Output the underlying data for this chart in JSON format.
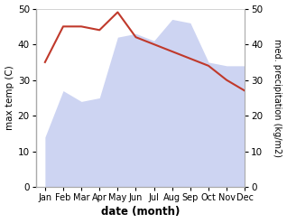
{
  "months": [
    "Jan",
    "Feb",
    "Mar",
    "Apr",
    "May",
    "Jun",
    "Jul",
    "Aug",
    "Sep",
    "Oct",
    "Nov",
    "Dec"
  ],
  "max_temp": [
    35,
    45,
    45,
    44,
    49,
    42,
    40,
    38,
    36,
    34,
    30,
    27
  ],
  "precipitation": [
    14,
    27,
    24,
    25,
    42,
    43,
    41,
    47,
    46,
    35,
    34,
    34
  ],
  "temp_color": "#c0392b",
  "precip_fill_color": "#c5cdf0",
  "precip_alpha": 0.85,
  "ylabel_left": "max temp (C)",
  "ylabel_right": "med. precipitation (kg/m2)",
  "xlabel": "date (month)",
  "ylim": [
    0,
    50
  ],
  "figsize": [
    3.18,
    2.47
  ],
  "dpi": 100,
  "bg_color": "#ffffff",
  "spine_color": "#aaaaaa"
}
